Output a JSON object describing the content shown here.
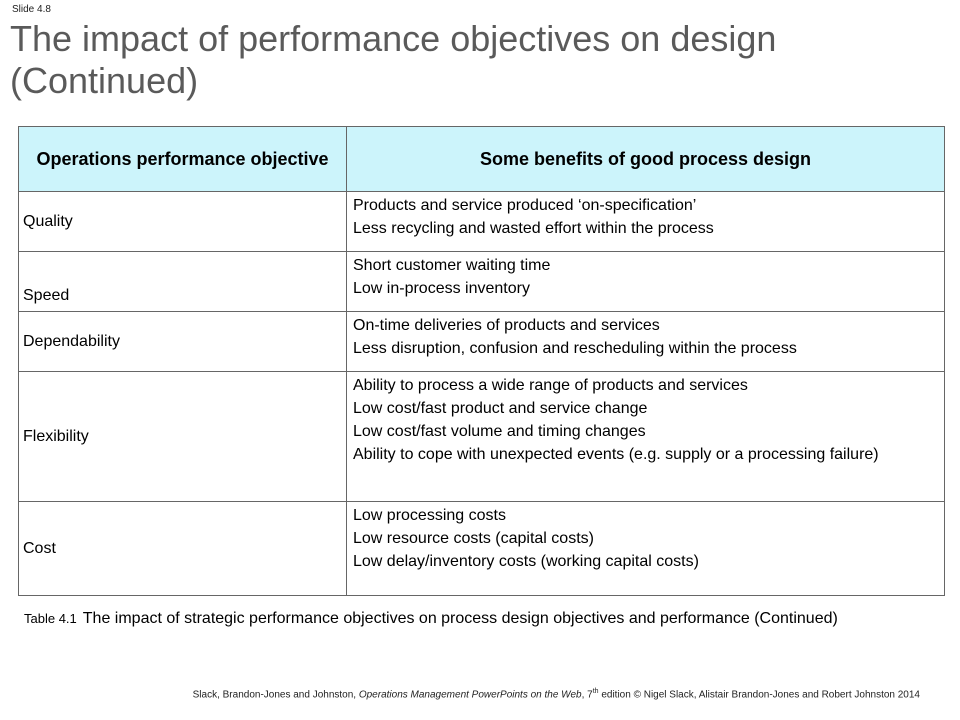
{
  "slide_number": "Slide 4.8",
  "title": "The impact of performance objectives  on design (Continued)",
  "table": {
    "headers": [
      "Operations performance objective",
      "Some benefits of good process design"
    ],
    "rows": [
      {
        "objective": "Quality",
        "benefits": [
          "Products and service produced ‘on-specification’",
          "Less recycling and wasted effort within the process"
        ]
      },
      {
        "objective": "Speed",
        "benefits": [
          "Short customer waiting time",
          "Low in-process inventory"
        ]
      },
      {
        "objective": "Dependability",
        "benefits": [
          "On-time deliveries of products and services",
          "Less disruption, confusion and rescheduling within the process"
        ]
      },
      {
        "objective": "Flexibility",
        "benefits": [
          "Ability to process a wide range of products and services",
          "Low cost/fast product and service change",
          "Low cost/fast volume and timing changes",
          "Ability to cope with unexpected events (e.g. supply or a processing failure)"
        ]
      },
      {
        "objective": "Cost",
        "benefits": [
          "Low processing costs",
          "Low resource costs (capital costs)",
          "Low delay/inventory costs (working capital costs)"
        ]
      }
    ]
  },
  "caption": {
    "tag": "Table 4.1",
    "text": "The impact of strategic performance objectives on process design objectives and performance (Continued)"
  },
  "footer": {
    "pre": "Slack, Brandon-Jones and Johnston, ",
    "italic": "Operations Management PowerPoints on the Web",
    "mid": ", 7",
    "sup": "th",
    "post": " edition © Nigel Slack, Alistair Brandon-Jones and Robert Johnston 2014"
  }
}
